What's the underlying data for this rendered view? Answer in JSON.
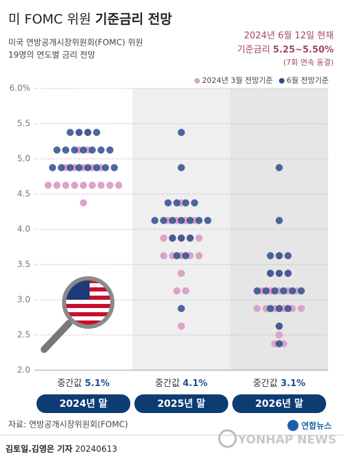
{
  "chart_data": {
    "type": "dot",
    "title_prefix": "미 FOMC 위원",
    "title_bold": "기준금리 전망",
    "subtitle": [
      "미국 연방공개시장위원회(FOMC) 위원",
      "19명의 연도별 금리 전망"
    ],
    "as_of": "2024년 6월 12일 현재",
    "rate_label": "기준금리",
    "rate_value": "5.25~5.50%",
    "rate_note": "(7회 연속 동결)",
    "categories": [
      "2024년 말",
      "2025년 말",
      "2026년 말"
    ],
    "median_label": "중간값",
    "medians": [
      5.1,
      4.1,
      3.1
    ],
    "median_labels": [
      "5.1%",
      "4.1%",
      "3.1%"
    ],
    "ylim": [
      2.0,
      6.0
    ],
    "yticks": [
      {
        "value": 6.0,
        "label": "6.0%"
      },
      5.5,
      {
        "value": 5.0,
        "label": "5.0"
      },
      4.5,
      {
        "value": 4.0,
        "label": "4.0"
      },
      3.5,
      {
        "value": 3.0,
        "label": "3.0"
      },
      2.5,
      {
        "value": 2.0,
        "label": "2.0"
      }
    ],
    "grid": true,
    "series": [
      {
        "name": "2024년 3월 전망기준",
        "color": "#dba3c8",
        "values": [
          [
            {
              "rate": 5.375,
              "count": 2
            },
            {
              "rate": 5.125,
              "count": 2
            },
            {
              "rate": 4.875,
              "count": 5
            },
            {
              "rate": 4.625,
              "count": 9
            },
            {
              "rate": 4.375,
              "count": 1
            }
          ],
          [
            {
              "rate": 4.375,
              "count": 1
            },
            {
              "rate": 4.125,
              "count": 4
            },
            {
              "rate": 3.875,
              "count": 5
            },
            {
              "rate": 3.625,
              "count": 5
            },
            {
              "rate": 3.375,
              "count": 1
            },
            {
              "rate": 3.125,
              "count": 2
            },
            {
              "rate": 2.625,
              "count": 1
            }
          ],
          [
            {
              "rate": 3.625,
              "count": 1
            },
            {
              "rate": 3.375,
              "count": 3
            },
            {
              "rate": 3.125,
              "count": 5
            },
            {
              "rate": 2.875,
              "count": 6
            },
            {
              "rate": 2.625,
              "count": 1
            },
            {
              "rate": 2.5,
              "count": 1
            },
            {
              "rate": 2.375,
              "count": 2
            }
          ]
        ]
      },
      {
        "name": "6월 전망기준",
        "color": "#2e4d8c",
        "values": [
          [
            {
              "rate": 5.375,
              "count": 4
            },
            {
              "rate": 5.125,
              "count": 7
            },
            {
              "rate": 4.875,
              "count": 8
            }
          ],
          [
            {
              "rate": 5.375,
              "count": 1
            },
            {
              "rate": 4.875,
              "count": 1
            },
            {
              "rate": 4.375,
              "count": 4
            },
            {
              "rate": 4.125,
              "count": 7
            },
            {
              "rate": 3.875,
              "count": 3
            },
            {
              "rate": 3.625,
              "count": 2
            },
            {
              "rate": 2.875,
              "count": 1
            }
          ],
          [
            {
              "rate": 4.875,
              "count": 1
            },
            {
              "rate": 4.125,
              "count": 1
            },
            {
              "rate": 3.625,
              "count": 3
            },
            {
              "rate": 3.375,
              "count": 3
            },
            {
              "rate": 3.125,
              "count": 6
            },
            {
              "rate": 2.875,
              "count": 3
            },
            {
              "rate": 2.625,
              "count": 1
            },
            {
              "rate": 2.375,
              "count": 1
            }
          ]
        ]
      }
    ],
    "source": "자료: 연방공개시장위원회(FOMC)",
    "byline": "김토일.김영은 기자",
    "date": "20240613",
    "logo": "연합뉴스",
    "logo_en": "YONHAP NEWS"
  }
}
